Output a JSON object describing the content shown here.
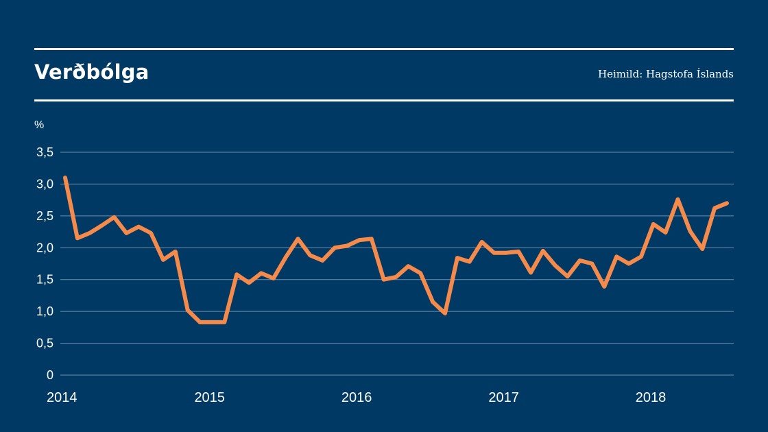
{
  "header": {
    "title": "Verðbólga",
    "source": "Heimild: Hagstofa Íslands"
  },
  "colors": {
    "background": "#003963",
    "line": "#f58a4b",
    "grid": "#6f8fac",
    "text": "#ffffff"
  },
  "chart_data": {
    "type": "line",
    "title": "Verðbólga",
    "ylabel": "%",
    "xlabel": "",
    "ylim": [
      0,
      3.5
    ],
    "y_ticks": [
      {
        "value": 0,
        "label": "0"
      },
      {
        "value": 0.5,
        "label": "0,5"
      },
      {
        "value": 1.0,
        "label": "1,0"
      },
      {
        "value": 1.5,
        "label": "1,5"
      },
      {
        "value": 2.0,
        "label": "2,0"
      },
      {
        "value": 2.5,
        "label": "2,5"
      },
      {
        "value": 3.0,
        "label": "3,0"
      },
      {
        "value": 3.5,
        "label": "3,5"
      }
    ],
    "x_ticks": [
      "2014",
      "2015",
      "2016",
      "2017",
      "2018"
    ],
    "grid": true,
    "legend": "none",
    "series": [
      {
        "color": "#f58a4b",
        "x": [
          "2014-01",
          "2014-02",
          "2014-03",
          "2014-04",
          "2014-05",
          "2014-06",
          "2014-07",
          "2014-08",
          "2014-09",
          "2014-10",
          "2014-11",
          "2014-12",
          "2015-01",
          "2015-02",
          "2015-03",
          "2015-04",
          "2015-05",
          "2015-06",
          "2015-07",
          "2015-08",
          "2015-09",
          "2015-10",
          "2015-11",
          "2015-12",
          "2016-01",
          "2016-02",
          "2016-03",
          "2016-04",
          "2016-05",
          "2016-06",
          "2016-07",
          "2016-08",
          "2016-09",
          "2016-10",
          "2016-11",
          "2016-12",
          "2017-01",
          "2017-02",
          "2017-03",
          "2017-04",
          "2017-05",
          "2017-06",
          "2017-07",
          "2017-08",
          "2017-09",
          "2017-10",
          "2017-11",
          "2017-12",
          "2018-01",
          "2018-02",
          "2018-03",
          "2018-04",
          "2018-05",
          "2018-06",
          "2018-07"
        ],
        "values": [
          3.1,
          2.15,
          2.23,
          2.35,
          2.48,
          2.23,
          2.33,
          2.23,
          1.81,
          1.94,
          1.02,
          0.83,
          0.83,
          0.83,
          1.58,
          1.45,
          1.6,
          1.52,
          1.85,
          2.14,
          1.88,
          1.8,
          2.0,
          2.03,
          2.12,
          2.14,
          1.5,
          1.54,
          1.71,
          1.6,
          1.15,
          0.97,
          1.84,
          1.78,
          2.09,
          1.92,
          1.92,
          1.94,
          1.61,
          1.95,
          1.72,
          1.55,
          1.8,
          1.75,
          1.39,
          1.86,
          1.75,
          1.86,
          2.37,
          2.24,
          2.76,
          2.26,
          1.98,
          2.62,
          2.7
        ]
      }
    ]
  }
}
